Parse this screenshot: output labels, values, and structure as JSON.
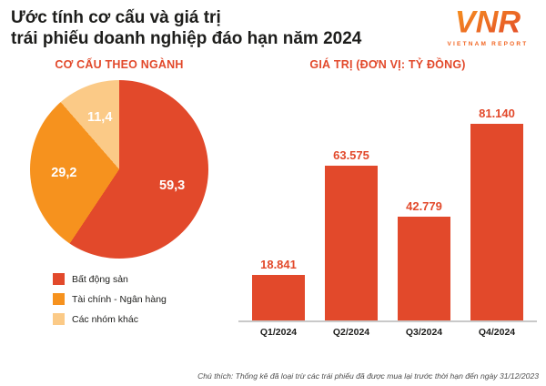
{
  "header": {
    "title_line1": "Ước tính cơ cấu và giá trị",
    "title_line2": "trái phiếu doanh nghiệp đáo hạn năm 2024"
  },
  "logo": {
    "text": "VNR",
    "subtext": "VIETNAM REPORT"
  },
  "pie_section": {
    "heading": "CƠ CẤU THEO NGÀNH"
  },
  "bar_section": {
    "heading": "GIÁ TRỊ (ĐƠN VỊ: TỶ ĐỒNG)"
  },
  "note": {
    "text": "Chú thích: Thống kê đã loại trừ các trái phiếu đã được mua lại trước thời hạn đến ngày 31/12/2023"
  },
  "colors": {
    "primary_red": "#e2492b",
    "orange": "#f6921e",
    "light_orange": "#fbca87",
    "title_text": "#1d1d1b"
  },
  "chart_data": [
    {
      "type": "pie",
      "title": "CƠ CẤU THEO NGÀNH",
      "legend_position": "bottom-left",
      "slices": [
        {
          "label": "Bất động sản",
          "value": 59.3,
          "display": "59,3",
          "color": "#e2492b"
        },
        {
          "label": "Tài chính - Ngân hàng",
          "value": 29.2,
          "display": "29,2",
          "color": "#f6921e"
        },
        {
          "label": "Các nhóm khác",
          "value": 11.4,
          "display": "11,4",
          "color": "#fbca87"
        }
      ]
    },
    {
      "type": "bar",
      "title": "GIÁ TRỊ (ĐƠN VỊ: TỶ ĐỒNG)",
      "categories": [
        "Q1/2024",
        "Q2/2024",
        "Q3/2024",
        "Q4/2024"
      ],
      "values": [
        18841,
        63575,
        42779,
        81140
      ],
      "value_labels": [
        "18.841",
        "63.575",
        "42.779",
        "81.140"
      ],
      "ylim": [
        0,
        90000
      ],
      "bar_color": "#e2492b",
      "label_color": "#e2492b",
      "grid": false,
      "legend_position": "none"
    }
  ]
}
